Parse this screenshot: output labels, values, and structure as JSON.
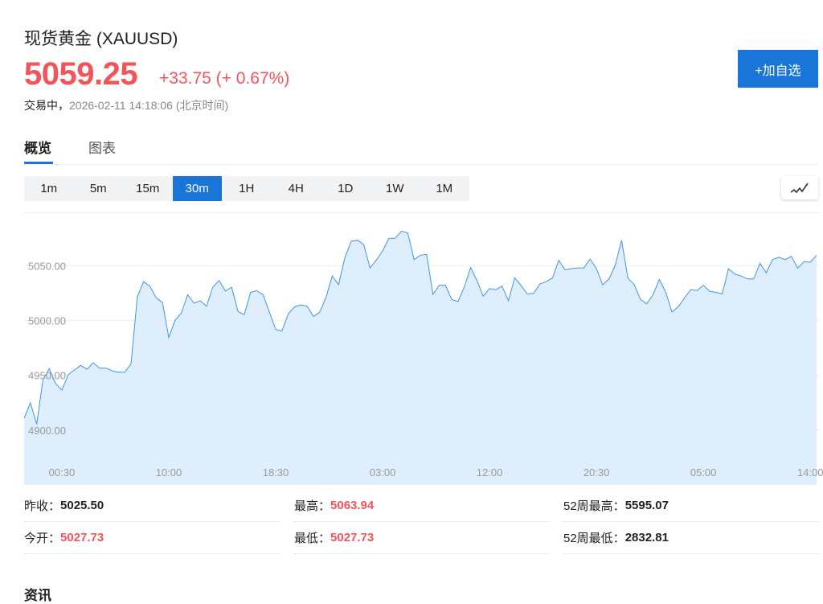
{
  "header": {
    "title": "现货黄金",
    "symbol": "(XAUUSD)",
    "price": "5059.25",
    "change": "+33.75",
    "change_pct": "(+ 0.67%)",
    "status": "交易中，",
    "datetime": "2026-02-11 14:18:06",
    "timezone": "(北京时间)",
    "add_watchlist": "+加自选"
  },
  "tabs": [
    {
      "label": "概览",
      "active": true
    },
    {
      "label": "图表",
      "active": false
    }
  ],
  "intervals": [
    "1m",
    "5m",
    "15m",
    "30m",
    "1H",
    "4H",
    "1D",
    "1W",
    "1M"
  ],
  "active_interval": "30m",
  "chart_type_icon": "line-chart-icon",
  "colors": {
    "up": "#f5535a",
    "accent": "#1976d8",
    "line": "#3d95ea",
    "fill": "#dfeefd"
  },
  "chart_data": {
    "type": "area",
    "ylim": [
      4850,
      5098
    ],
    "y_ticks": [
      "5050.00",
      "5000.00",
      "4950.00",
      "4900.00"
    ],
    "x_ticks": [
      {
        "index": 6,
        "label": "00:30"
      },
      {
        "index": 23,
        "label": "10:00"
      },
      {
        "index": 40,
        "label": "18:30"
      },
      {
        "index": 57,
        "label": "03:00"
      },
      {
        "index": 74,
        "label": "12:00"
      },
      {
        "index": 91,
        "label": "20:30"
      },
      {
        "index": 108,
        "label": "05:00"
      },
      {
        "index": 125,
        "label": "14:00"
      }
    ],
    "grid": "horizontal",
    "values": [
      4910.8,
      4925,
      4905.4,
      4946.3,
      4956.1,
      4942.6,
      4936.5,
      4950.7,
      4954.9,
      4959,
      4955.6,
      4961.5,
      4956.6,
      4956.6,
      4954.2,
      4952.7,
      4952.9,
      4960.5,
      5021.8,
      5035.5,
      5031.4,
      5020.8,
      5016.4,
      4984.6,
      5000.2,
      5006.9,
      5023.5,
      5015.9,
      5018.1,
      5013,
      5030.4,
      5036.5,
      5027,
      5030.4,
      5008.3,
      5005.4,
      5025.7,
      5027.2,
      5023.5,
      5007.6,
      4991.9,
      4990.4,
      5006.1,
      5012.5,
      5014.2,
      5013.2,
      5003.7,
      5007.6,
      5021.1,
      5040.7,
      5032.8,
      5057.4,
      5072.3,
      5073.3,
      5069.4,
      5048,
      5055.1,
      5063.5,
      5075,
      5075,
      5081.6,
      5080.1,
      5055.6,
      5059.6,
      5060.3,
      5024,
      5032.1,
      5032.1,
      5019.1,
      5017.4,
      5030.9,
      5048.3,
      5036.5,
      5022.1,
      5029.2,
      5028.2,
      5031.4,
      5018.1,
      5039,
      5032.1,
      5024.3,
      5024.8,
      5033.3,
      5035.5,
      5038.7,
      5054.9,
      5046.3,
      5047.3,
      5048,
      5048,
      5056.1,
      5047.3,
      5032.6,
      5038,
      5050.7,
      5073.3,
      5038.7,
      5032.8,
      5019.3,
      5015.2,
      5023.5,
      5037.5,
      5026.2,
      5007.8,
      5012.5,
      5020.6,
      5028.2,
      5027.4,
      5032.1,
      5026.7,
      5025.7,
      5024.3,
      5047.3,
      5042.4,
      5040.7,
      5038,
      5038,
      5052.2,
      5043.6,
      5055.6,
      5057.8,
      5055.6,
      5058.6,
      5047.8,
      5053.7,
      5053.2,
      5059.6
    ]
  },
  "stats": [
    {
      "label": "昨收：",
      "value": "5025.50",
      "red": false
    },
    {
      "label": "最高：",
      "value": "5063.94",
      "red": true
    },
    {
      "label": "52周最高：",
      "value": "5595.07",
      "red": false
    },
    {
      "label": "今开：",
      "value": "5027.73",
      "red": true
    },
    {
      "label": "最低：",
      "value": "5027.73",
      "red": true
    },
    {
      "label": "52周最低：",
      "value": "2832.81",
      "red": false
    }
  ],
  "news_title": "资讯"
}
